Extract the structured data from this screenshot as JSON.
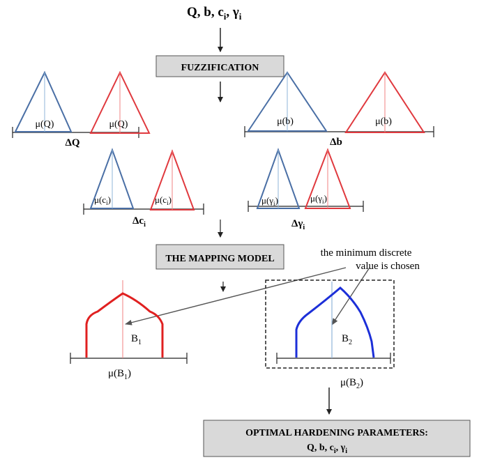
{
  "header": {
    "inputs": {
      "base": "Q, b, c",
      "sub1": "i",
      "sep": ", γ",
      "sub2": "i"
    }
  },
  "boxes": {
    "fuzzification": "FUZZIFICATION",
    "mapping_model": "THE MAPPING MODEL",
    "optimal_line1": "OPTIMAL HARDENING PARAMETERS:",
    "optimal_line2": {
      "base": "Q, b, c",
      "sub1": "i",
      "sep": ", γ",
      "sub2": "i"
    }
  },
  "fuzzy_sets": {
    "Q": {
      "left_label": "μ(Q)",
      "right_label": "μ(Q)",
      "delta": "ΔQ"
    },
    "b": {
      "left_label": "μ(b)",
      "right_label": "μ(b)",
      "delta": "Δb"
    },
    "c": {
      "mu": "μ(c",
      "sub": "i",
      "close": ")",
      "delta": "Δc",
      "delta_sub": "i"
    },
    "gamma": {
      "mu": "μ(γ",
      "sub": "i",
      "close": ")",
      "delta": "Δγ",
      "delta_sub": "i"
    }
  },
  "outputs": {
    "B1": {
      "label": "B",
      "sub": "1",
      "mu": "μ(B",
      "mu_close": ")"
    },
    "B2": {
      "label": "B",
      "sub": "2",
      "mu": "μ(B",
      "mu_close": ")"
    }
  },
  "annotation": {
    "line1": "the minimum discrete",
    "line2": "value is chosen"
  },
  "colors": {
    "blue": "#4a6fa5",
    "red": "#e0393e",
    "thin_red": "#f08080",
    "thin_blue": "#8fb4d9",
    "box_fill": "#d9d9d9",
    "B1_curve": "#e02020",
    "B2_curve": "#1c2fd8"
  }
}
